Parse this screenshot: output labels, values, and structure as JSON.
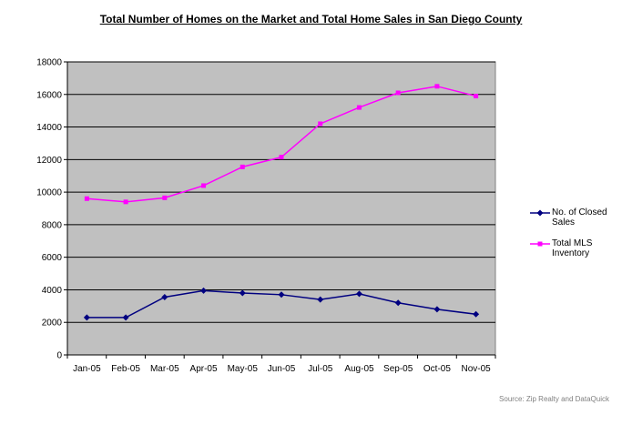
{
  "chart_data": {
    "type": "line",
    "title": "Total Number of Homes on the Market and Total Home Sales in San Diego County",
    "categories": [
      "Jan-05",
      "Feb-05",
      "Mar-05",
      "Apr-05",
      "May-05",
      "Jun-05",
      "Jul-05",
      "Aug-05",
      "Sep-05",
      "Oct-05",
      "Nov-05"
    ],
    "series": [
      {
        "name": "No. of Closed Sales",
        "color": "#000080",
        "marker": "diamond",
        "values": [
          2300,
          2300,
          3550,
          3950,
          3800,
          3700,
          3400,
          3750,
          3200,
          2800,
          2500
        ]
      },
      {
        "name": "Total MLS Inventory",
        "color": "#FF00FF",
        "marker": "square",
        "values": [
          9600,
          9400,
          9650,
          10400,
          11550,
          12150,
          14200,
          15200,
          16100,
          16500,
          15900
        ]
      }
    ],
    "ylim": [
      0,
      18000
    ],
    "yticks": [
      0,
      2000,
      4000,
      6000,
      8000,
      10000,
      12000,
      14000,
      16000,
      18000
    ],
    "grid": "horizontal",
    "plot_background": "#C0C0C0",
    "legend_position": "right",
    "source": "Source: Zip Realty and DataQuick"
  }
}
